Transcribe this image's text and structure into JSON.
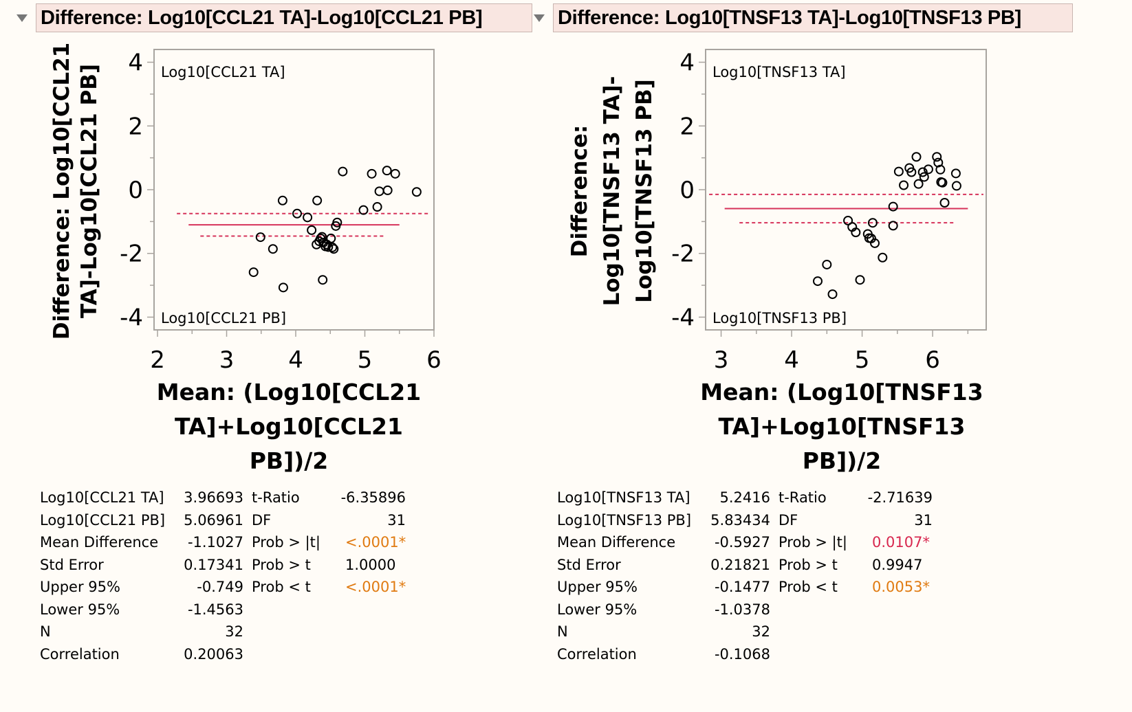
{
  "panels": [
    {
      "title": "Difference: Log10[CCL21 TA]-Log10[CCL21 PB]",
      "stats": {
        "left": [
          {
            "label": "Log10[CCL21 TA]",
            "value": "3.96693"
          },
          {
            "label": "Log10[CCL21 PB]",
            "value": "5.06961"
          },
          {
            "label": "Mean Difference",
            "value": "-1.1027"
          },
          {
            "label": "Std Error",
            "value": "0.17341"
          },
          {
            "label": "Upper 95%",
            "value": "-0.749"
          },
          {
            "label": "Lower 95%",
            "value": "-1.4563"
          },
          {
            "label": "N",
            "value": "32"
          },
          {
            "label": "Correlation",
            "value": "0.20063"
          }
        ],
        "right": [
          {
            "label": "t-Ratio",
            "value": "-6.35896",
            "color": "#000000"
          },
          {
            "label": "DF",
            "value": "31",
            "color": "#000000"
          },
          {
            "label": "Prob > |t|",
            "value": "<.0001*",
            "color": "#e07b12"
          },
          {
            "label": "Prob > t",
            "value": "1.0000",
            "color": "#000000"
          },
          {
            "label": "Prob < t",
            "value": "<.0001*",
            "color": "#e07b12"
          }
        ]
      }
    },
    {
      "title": "Difference: Log10[TNSF13 TA]-Log10[TNSF13 PB]",
      "stats": {
        "left": [
          {
            "label": "Log10[TNSF13 TA]",
            "value": "5.2416"
          },
          {
            "label": "Log10[TNSF13 PB]",
            "value": "5.83434"
          },
          {
            "label": "Mean Difference",
            "value": "-0.5927"
          },
          {
            "label": "Std Error",
            "value": "0.21821"
          },
          {
            "label": "Upper 95%",
            "value": "-0.1477"
          },
          {
            "label": "Lower 95%",
            "value": "-1.0378"
          },
          {
            "label": "N",
            "value": "32"
          },
          {
            "label": "Correlation",
            "value": "-0.1068"
          }
        ],
        "right": [
          {
            "label": "t-Ratio",
            "value": "-2.71639",
            "color": "#000000"
          },
          {
            "label": "DF",
            "value": "31",
            "color": "#000000"
          },
          {
            "label": "Prob > |t|",
            "value": "0.0107*",
            "color": "#d8284f"
          },
          {
            "label": "Prob > t",
            "value": "0.9947",
            "color": "#000000"
          },
          {
            "label": "Prob < t",
            "value": "0.0053*",
            "color": "#e07b12"
          }
        ]
      }
    }
  ],
  "colors": {
    "mean_line": "#d6325a",
    "point_stroke": "#000000",
    "frame": "#a8a49f"
  },
  "chart_data": [
    {
      "type": "scatter",
      "title": "Difference: Log10[CCL21 TA]-Log10[CCL21 PB]",
      "xlabel": "Mean: (Log10[CCL21 TA]+Log10[CCL21 PB])/2",
      "xlabel_lines": [
        "Mean: (Log10[CCL21",
        "TA]+Log10[CCL21",
        "PB])/2"
      ],
      "ylabel": "Difference: Log10[CCL21 TA]-Log10[CCL21 PB]",
      "ylabel_lines": [
        "Difference: Log10[CCL21",
        "TA]-Log10[CCL21 PB]"
      ],
      "xlim": [
        1.95,
        6.0
      ],
      "ylim": [
        -4.4,
        4.4
      ],
      "xticks": [
        2,
        3,
        4,
        5,
        6
      ],
      "yticks": [
        4,
        2,
        0,
        -2,
        -4
      ],
      "top_label": "Log10[CCL21 TA]",
      "bottom_label": "Log10[CCL21 PB]",
      "mean_difference": -1.1027,
      "upper_95": -0.749,
      "lower_95": -1.4563,
      "mean_line_x": [
        2.45,
        5.5
      ],
      "upper_line_x": [
        2.28,
        5.95
      ],
      "lower_line_x": [
        2.62,
        5.3
      ],
      "grid": false,
      "points": [
        [
          3.39,
          -2.59
        ],
        [
          3.49,
          -1.49
        ],
        [
          3.67,
          -1.86
        ],
        [
          3.81,
          -0.34
        ],
        [
          3.82,
          -3.07
        ],
        [
          4.02,
          -0.75
        ],
        [
          4.17,
          -0.87
        ],
        [
          4.23,
          -1.27
        ],
        [
          4.31,
          -0.34
        ],
        [
          4.3,
          -1.72
        ],
        [
          4.36,
          -1.53
        ],
        [
          4.38,
          -1.48
        ],
        [
          4.39,
          -2.83
        ],
        [
          4.4,
          -1.66
        ],
        [
          4.43,
          -1.78
        ],
        [
          4.47,
          -1.8
        ],
        [
          4.51,
          -1.53
        ],
        [
          4.53,
          -1.81
        ],
        [
          4.55,
          -1.86
        ],
        [
          4.58,
          -1.14
        ],
        [
          4.6,
          -1.03
        ],
        [
          4.68,
          0.57
        ],
        [
          4.98,
          -0.64
        ],
        [
          5.1,
          0.5
        ],
        [
          5.18,
          -0.54
        ],
        [
          5.21,
          -0.05
        ],
        [
          5.32,
          0.6
        ],
        [
          5.33,
          -0.02
        ],
        [
          5.44,
          0.5
        ],
        [
          5.75,
          -0.07
        ],
        [
          4.45,
          -1.72
        ],
        [
          4.34,
          -1.62
        ]
      ]
    },
    {
      "type": "scatter",
      "title": "Difference: Log10[TNSF13 TA]-Log10[TNSF13 PB]",
      "xlabel": "Mean: (Log10[TNSF13 TA]+Log10[TNSF13 PB])/2",
      "xlabel_lines": [
        "Mean: (Log10[TNSF13",
        "TA]+Log10[TNSF13",
        "PB])/2"
      ],
      "ylabel": "Difference: Log10[TNSF13 TA]-Log10[TNSF13 PB]",
      "ylabel_lines": [
        "Difference:",
        "Log10[TNSF13 TA]-",
        "Log10[TNSF13 PB]"
      ],
      "xlim": [
        2.78,
        6.76
      ],
      "ylim": [
        -4.4,
        4.4
      ],
      "xticks": [
        3,
        4,
        5,
        6
      ],
      "yticks": [
        4,
        2,
        0,
        -2,
        -4
      ],
      "top_label": "Log10[TNSF13 TA]",
      "bottom_label": "Log10[TNSF13 PB]",
      "mean_difference": -0.5927,
      "upper_95": -0.1477,
      "lower_95": -1.0378,
      "mean_line_x": [
        3.05,
        6.5
      ],
      "upper_line_x": [
        2.83,
        6.72
      ],
      "lower_line_x": [
        3.26,
        6.3
      ],
      "grid": false,
      "points": [
        [
          4.37,
          -2.87
        ],
        [
          4.5,
          -2.35
        ],
        [
          4.58,
          -3.28
        ],
        [
          4.97,
          -2.83
        ],
        [
          4.8,
          -0.97
        ],
        [
          4.86,
          -1.17
        ],
        [
          4.91,
          -1.34
        ],
        [
          5.08,
          -1.39
        ],
        [
          5.1,
          -1.52
        ],
        [
          5.13,
          -1.53
        ],
        [
          5.15,
          -1.04
        ],
        [
          5.18,
          -1.68
        ],
        [
          5.29,
          -2.13
        ],
        [
          5.44,
          -0.53
        ],
        [
          5.44,
          -1.13
        ],
        [
          5.52,
          0.57
        ],
        [
          5.59,
          0.14
        ],
        [
          5.67,
          0.68
        ],
        [
          5.7,
          0.55
        ],
        [
          5.77,
          1.03
        ],
        [
          5.8,
          0.18
        ],
        [
          5.86,
          0.55
        ],
        [
          5.88,
          0.4
        ],
        [
          5.94,
          0.64
        ],
        [
          6.06,
          1.03
        ],
        [
          6.08,
          0.85
        ],
        [
          6.11,
          0.63
        ],
        [
          6.12,
          0.24
        ],
        [
          6.14,
          0.22
        ],
        [
          6.17,
          -0.41
        ],
        [
          6.33,
          0.51
        ],
        [
          6.34,
          0.12
        ]
      ]
    }
  ]
}
